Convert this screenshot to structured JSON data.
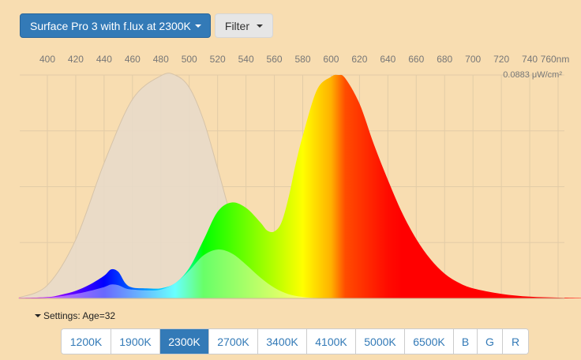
{
  "toolbar": {
    "device_label": "Surface Pro 3 with f.lux at 2300K",
    "filter_label": "Filter"
  },
  "chart_data": {
    "type": "area",
    "x_axis": {
      "unit": "nm",
      "range": [
        380,
        780
      ],
      "ticks": [
        400,
        420,
        440,
        460,
        480,
        500,
        520,
        540,
        560,
        580,
        600,
        620,
        640,
        660,
        680,
        700,
        720,
        740,
        760
      ],
      "tick_labels": [
        "400",
        "420",
        "440",
        "460",
        "480",
        "500",
        "520",
        "540",
        "560",
        "580",
        "600",
        "620",
        "640",
        "660",
        "680",
        "700",
        "720",
        "740",
        "760nm"
      ],
      "position": "top"
    },
    "y_axis": {
      "max_label": "0.0883 μW/cm²",
      "range": [
        0,
        0.0883
      ]
    },
    "grid": true,
    "series": [
      {
        "role": "reference",
        "color": "#e7dbcb",
        "x": [
          380,
          400,
          420,
          440,
          460,
          480,
          490,
          500,
          510,
          520,
          530,
          540,
          550,
          560
        ],
        "y": [
          0.0003,
          0.0052,
          0.0232,
          0.0535,
          0.0787,
          0.088,
          0.0883,
          0.0834,
          0.0705,
          0.0514,
          0.0314,
          0.0158,
          0.0062,
          0.0015
        ]
      },
      {
        "role": "spectrum",
        "x": [
          380,
          400,
          410,
          420,
          430,
          440,
          445,
          450,
          455,
          460,
          470,
          480,
          490,
          500,
          510,
          520,
          530,
          540,
          550,
          555,
          560,
          565,
          570,
          575,
          580,
          590,
          600,
          605,
          610,
          620,
          630,
          640,
          650,
          660,
          670,
          680,
          690,
          700,
          720,
          740,
          760,
          780
        ],
        "y": [
          0.0002,
          0.0005,
          0.0015,
          0.003,
          0.0055,
          0.009,
          0.0115,
          0.0105,
          0.006,
          0.0043,
          0.004,
          0.004,
          0.006,
          0.012,
          0.023,
          0.0343,
          0.0379,
          0.0358,
          0.0301,
          0.0268,
          0.0265,
          0.03,
          0.0398,
          0.053,
          0.0642,
          0.0824,
          0.0876,
          0.0883,
          0.087,
          0.077,
          0.0611,
          0.0469,
          0.0339,
          0.0235,
          0.0155,
          0.0098,
          0.0062,
          0.004,
          0.0018,
          0.0007,
          0.0003,
          0.0001
        ]
      },
      {
        "role": "adjusted",
        "x": [
          380,
          400,
          420,
          430,
          440,
          445,
          450,
          455,
          460,
          470,
          480,
          490,
          500,
          510,
          520,
          530,
          540,
          550,
          560,
          570,
          580,
          590,
          600
        ],
        "y": [
          0.0001,
          0.0003,
          0.0018,
          0.003,
          0.0045,
          0.0055,
          0.0052,
          0.004,
          0.0035,
          0.0032,
          0.0035,
          0.006,
          0.011,
          0.017,
          0.0193,
          0.0178,
          0.0134,
          0.0083,
          0.0042,
          0.0017,
          0.0006,
          0.0002,
          0.0001
        ]
      }
    ]
  },
  "settings_label": "Settings: Age=32",
  "temperature_buttons": [
    "1200K",
    "1900K",
    "2300K",
    "2700K",
    "3400K",
    "4100K",
    "5000K",
    "6500K",
    "B",
    "G",
    "R"
  ],
  "active_button": "2300K"
}
